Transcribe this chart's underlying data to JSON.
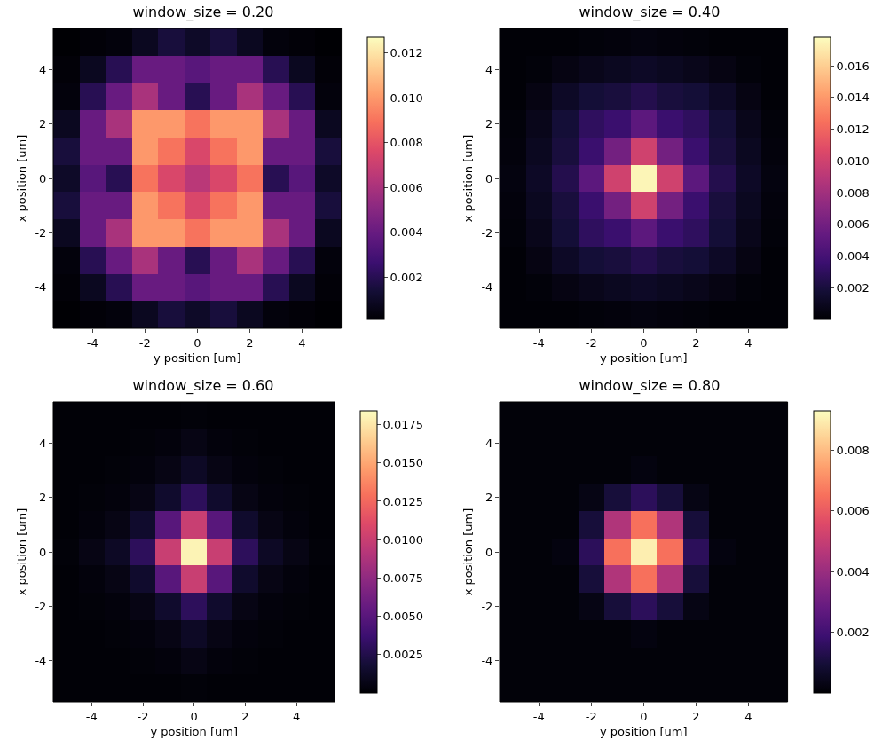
{
  "chart_data": [
    {
      "type": "heatmap",
      "title": "window_size = 0.20",
      "xlabel": "y position [um]",
      "ylabel": "x position [um]",
      "categories": [
        null,
        "-4",
        null,
        "-2",
        null,
        "0",
        null,
        "2",
        null,
        "4",
        null
      ],
      "y_categories": [
        null,
        "4",
        null,
        "2",
        null,
        "0",
        null,
        "-2",
        null,
        "-4",
        null
      ],
      "cells": [
        [
          0.0001,
          0.0002,
          0.0003,
          0.0008,
          0.0015,
          0.001,
          0.0015,
          0.0008,
          0.0003,
          0.0002,
          0.0001
        ],
        [
          0.0002,
          0.0008,
          0.002,
          0.004,
          0.004,
          0.0035,
          0.004,
          0.004,
          0.002,
          0.0008,
          0.0002
        ],
        [
          0.0003,
          0.002,
          0.004,
          0.006,
          0.004,
          0.002,
          0.004,
          0.006,
          0.004,
          0.002,
          0.0003
        ],
        [
          0.0008,
          0.004,
          0.006,
          0.01,
          0.01,
          0.009,
          0.01,
          0.01,
          0.006,
          0.004,
          0.0008
        ],
        [
          0.0015,
          0.004,
          0.004,
          0.01,
          0.009,
          0.0075,
          0.009,
          0.01,
          0.004,
          0.004,
          0.0015
        ],
        [
          0.001,
          0.0035,
          0.002,
          0.009,
          0.0075,
          0.0065,
          0.0075,
          0.009,
          0.002,
          0.0035,
          0.001
        ],
        [
          0.0015,
          0.004,
          0.004,
          0.01,
          0.009,
          0.0075,
          0.009,
          0.01,
          0.004,
          0.004,
          0.0015
        ],
        [
          0.0008,
          0.004,
          0.006,
          0.01,
          0.01,
          0.009,
          0.01,
          0.01,
          0.006,
          0.004,
          0.0008
        ],
        [
          0.0003,
          0.002,
          0.004,
          0.006,
          0.004,
          0.002,
          0.004,
          0.006,
          0.004,
          0.002,
          0.0003
        ],
        [
          0.0002,
          0.0008,
          0.002,
          0.004,
          0.004,
          0.0035,
          0.004,
          0.004,
          0.002,
          0.0008,
          0.0002
        ],
        [
          0.0001,
          0.0002,
          0.0003,
          0.0008,
          0.0015,
          0.001,
          0.0015,
          0.0008,
          0.0003,
          0.0002,
          0.0001
        ]
      ],
      "clim": [
        0.0001,
        0.0127
      ],
      "cticks": [
        0.002,
        0.004,
        0.006,
        0.008,
        {
          "value": 0.01,
          "label": "0.010"
        },
        0.012
      ]
    },
    {
      "type": "heatmap",
      "title": "window_size = 0.40",
      "xlabel": "y position [um]",
      "ylabel": "x position [um]",
      "categories": [
        null,
        "-4",
        null,
        "-2",
        null,
        "0",
        null,
        "2",
        null,
        "4",
        null
      ],
      "y_categories": [
        null,
        "4",
        null,
        "2",
        null,
        "0",
        null,
        "-2",
        null,
        "-4",
        null
      ],
      "cells": [
        [
          0.0001,
          0.0001,
          0.0001,
          0.0002,
          0.0003,
          0.0004,
          0.0003,
          0.0002,
          0.0001,
          0.0001,
          0.0001
        ],
        [
          0.0001,
          0.0002,
          0.0005,
          0.0008,
          0.001,
          0.0012,
          0.001,
          0.0008,
          0.0005,
          0.0002,
          0.0001
        ],
        [
          0.0001,
          0.0005,
          0.0012,
          0.0018,
          0.002,
          0.0025,
          0.002,
          0.0018,
          0.0012,
          0.0005,
          0.0001
        ],
        [
          0.0002,
          0.0008,
          0.0018,
          0.003,
          0.0035,
          0.005,
          0.0035,
          0.003,
          0.0018,
          0.0008,
          0.0002
        ],
        [
          0.0003,
          0.001,
          0.002,
          0.0035,
          0.006,
          0.01,
          0.006,
          0.0035,
          0.002,
          0.001,
          0.0003
        ],
        [
          0.0004,
          0.0012,
          0.0025,
          0.005,
          0.01,
          0.0175,
          0.01,
          0.005,
          0.0025,
          0.0012,
          0.0004
        ],
        [
          0.0003,
          0.001,
          0.002,
          0.0035,
          0.006,
          0.01,
          0.006,
          0.0035,
          0.002,
          0.001,
          0.0003
        ],
        [
          0.0002,
          0.0008,
          0.0018,
          0.003,
          0.0035,
          0.005,
          0.0035,
          0.003,
          0.0018,
          0.0008,
          0.0002
        ],
        [
          0.0001,
          0.0005,
          0.0012,
          0.0018,
          0.002,
          0.0025,
          0.002,
          0.0018,
          0.0012,
          0.0005,
          0.0001
        ],
        [
          0.0001,
          0.0002,
          0.0005,
          0.0008,
          0.001,
          0.0012,
          0.001,
          0.0008,
          0.0005,
          0.0002,
          0.0001
        ],
        [
          0.0001,
          0.0001,
          0.0001,
          0.0002,
          0.0003,
          0.0004,
          0.0003,
          0.0002,
          0.0001,
          0.0001,
          0.0001
        ]
      ],
      "clim": [
        0,
        0.0178
      ],
      "cticks": [
        0.002,
        0.004,
        0.006,
        0.008,
        {
          "value": 0.01,
          "label": "0.010"
        },
        0.012,
        0.014,
        0.016
      ]
    },
    {
      "type": "heatmap",
      "title": "window_size = 0.60",
      "xlabel": "y position [um]",
      "ylabel": "x position [um]",
      "categories": [
        null,
        "-4",
        null,
        "-2",
        null,
        "0",
        null,
        "2",
        null,
        "4",
        null
      ],
      "y_categories": [
        null,
        "4",
        null,
        "2",
        null,
        "0",
        null,
        "-2",
        null,
        "-4",
        null
      ],
      "cells": [
        [
          0.0001,
          0.0001,
          0.0001,
          0.0001,
          0.0001,
          0.0002,
          0.0001,
          0.0001,
          0.0001,
          0.0001,
          0.0001
        ],
        [
          0.0001,
          0.0001,
          0.0001,
          0.0002,
          0.0003,
          0.0006,
          0.0003,
          0.0002,
          0.0001,
          0.0001,
          0.0001
        ],
        [
          0.0001,
          0.0001,
          0.0002,
          0.0003,
          0.0006,
          0.0012,
          0.0006,
          0.0003,
          0.0002,
          0.0001,
          0.0001
        ],
        [
          0.0001,
          0.0002,
          0.0003,
          0.0006,
          0.0015,
          0.003,
          0.0015,
          0.0006,
          0.0003,
          0.0002,
          0.0001
        ],
        [
          0.0001,
          0.0003,
          0.0006,
          0.0015,
          0.005,
          0.01,
          0.005,
          0.0015,
          0.0006,
          0.0003,
          0.0001
        ],
        [
          0.0002,
          0.0006,
          0.0012,
          0.003,
          0.01,
          0.018,
          0.01,
          0.003,
          0.0012,
          0.0006,
          0.0002
        ],
        [
          0.0001,
          0.0003,
          0.0006,
          0.0015,
          0.005,
          0.01,
          0.005,
          0.0015,
          0.0006,
          0.0003,
          0.0001
        ],
        [
          0.0001,
          0.0002,
          0.0003,
          0.0006,
          0.0015,
          0.003,
          0.0015,
          0.0006,
          0.0003,
          0.0002,
          0.0001
        ],
        [
          0.0001,
          0.0001,
          0.0002,
          0.0003,
          0.0006,
          0.0012,
          0.0006,
          0.0003,
          0.0002,
          0.0001,
          0.0001
        ],
        [
          0.0001,
          0.0001,
          0.0001,
          0.0002,
          0.0003,
          0.0006,
          0.0003,
          0.0002,
          0.0001,
          0.0001,
          0.0001
        ],
        [
          0.0001,
          0.0001,
          0.0001,
          0.0001,
          0.0001,
          0.0002,
          0.0001,
          0.0001,
          0.0001,
          0.0001,
          0.0001
        ]
      ],
      "clim": [
        0,
        0.0184
      ],
      "cticks": [
        0.0025,
        {
          "value": 0.005,
          "label": "0.0050"
        },
        0.0075,
        {
          "value": 0.01,
          "label": "0.0100"
        },
        0.0125,
        {
          "value": 0.015,
          "label": "0.0150"
        },
        0.0175
      ]
    },
    {
      "type": "heatmap",
      "title": "window_size = 0.80",
      "xlabel": "y position [um]",
      "ylabel": "x position [um]",
      "categories": [
        null,
        "-4",
        null,
        "-2",
        null,
        "0",
        null,
        "2",
        null,
        "4",
        null
      ],
      "y_categories": [
        null,
        "4",
        null,
        "2",
        null,
        "0",
        null,
        "-2",
        null,
        "-4",
        null
      ],
      "cells": [
        [
          0.0001,
          0.0001,
          0.0001,
          0.0001,
          0.0001,
          0.0001,
          0.0001,
          0.0001,
          0.0001,
          0.0001,
          0.0001
        ],
        [
          0.0001,
          0.0001,
          0.0001,
          0.0001,
          0.0001,
          0.0001,
          0.0001,
          0.0001,
          0.0001,
          0.0001,
          0.0001
        ],
        [
          0.0001,
          0.0001,
          0.0001,
          0.0001,
          0.0001,
          0.0002,
          0.0001,
          0.0001,
          0.0001,
          0.0001,
          0.0001
        ],
        [
          0.0001,
          0.0001,
          0.0001,
          0.0003,
          0.001,
          0.0015,
          0.001,
          0.0003,
          0.0001,
          0.0001,
          0.0001
        ],
        [
          0.0001,
          0.0001,
          0.0001,
          0.001,
          0.0045,
          0.0065,
          0.0045,
          0.001,
          0.0001,
          0.0001,
          0.0001
        ],
        [
          0.0001,
          0.0001,
          0.0002,
          0.0015,
          0.0065,
          0.009,
          0.0065,
          0.0015,
          0.0002,
          0.0001,
          0.0001
        ],
        [
          0.0001,
          0.0001,
          0.0001,
          0.001,
          0.0045,
          0.0065,
          0.0045,
          0.001,
          0.0001,
          0.0001,
          0.0001
        ],
        [
          0.0001,
          0.0001,
          0.0001,
          0.0003,
          0.001,
          0.0015,
          0.001,
          0.0003,
          0.0001,
          0.0001,
          0.0001
        ],
        [
          0.0001,
          0.0001,
          0.0001,
          0.0001,
          0.0001,
          0.0002,
          0.0001,
          0.0001,
          0.0001,
          0.0001,
          0.0001
        ],
        [
          0.0001,
          0.0001,
          0.0001,
          0.0001,
          0.0001,
          0.0001,
          0.0001,
          0.0001,
          0.0001,
          0.0001,
          0.0001
        ],
        [
          0.0001,
          0.0001,
          0.0001,
          0.0001,
          0.0001,
          0.0001,
          0.0001,
          0.0001,
          0.0001,
          0.0001,
          0.0001
        ]
      ],
      "clim": [
        0,
        0.0093
      ],
      "cticks": [
        0.002,
        0.004,
        0.006,
        0.008
      ]
    }
  ]
}
